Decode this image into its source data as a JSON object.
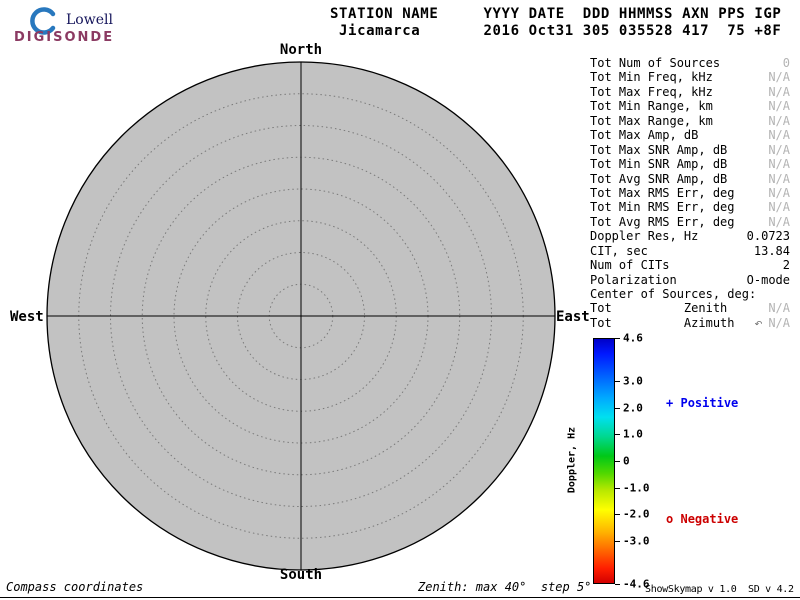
{
  "header": {
    "line1": "STATION NAME     YYYY DATE  DDD HHMMSS AXN PPS IGP",
    "line2": " Jicamarca       2016 Oct31 305 035528 417  75 +8F"
  },
  "logo": {
    "brand": "Lowell",
    "product": "DIGISONDE",
    "accent": "#2878be",
    "product_color": "#8b3a62"
  },
  "compass": {
    "north": "North",
    "south": "South",
    "west": "West",
    "east": "East"
  },
  "stats": {
    "rows": [
      {
        "label": "Tot Num of Sources",
        "value": "0",
        "muted": true
      },
      {
        "label": "Tot Min Freq, kHz",
        "value": "N/A",
        "muted": true
      },
      {
        "label": "Tot Max Freq, kHz",
        "value": "N/A",
        "muted": true
      },
      {
        "label": "Tot Min Range, km",
        "value": "N/A",
        "muted": true
      },
      {
        "label": "Tot Max Range, km",
        "value": "N/A",
        "muted": true
      },
      {
        "label": "Tot Max Amp, dB",
        "value": "N/A",
        "muted": true
      },
      {
        "label": "Tot Max SNR Amp, dB",
        "value": "N/A",
        "muted": true
      },
      {
        "label": "Tot Min SNR Amp, dB",
        "value": "N/A",
        "muted": true
      },
      {
        "label": "Tot Avg SNR Amp, dB",
        "value": "N/A",
        "muted": true
      },
      {
        "label": "Tot Max RMS Err, deg",
        "value": "N/A",
        "muted": true
      },
      {
        "label": "Tot Min RMS Err, deg",
        "value": "N/A",
        "muted": true
      },
      {
        "label": "Tot Avg RMS Err, deg",
        "value": "N/A",
        "muted": true
      },
      {
        "label": "Doppler Res, Hz",
        "value": "0.0723",
        "muted": false
      },
      {
        "label": "CIT, sec",
        "value": "13.84",
        "muted": false
      },
      {
        "label": "Num of CITs",
        "value": "2",
        "muted": false
      },
      {
        "label": "Polarization",
        "value": "O-mode",
        "muted": false
      },
      {
        "label": "Center of Sources, deg:",
        "value": "",
        "muted": false
      },
      {
        "label": "Tot          Zenith",
        "value": "N/A",
        "muted": true
      },
      {
        "label": "Tot          Azimuth",
        "value": "N/A",
        "muted": true,
        "mark": "↶"
      }
    ]
  },
  "colorbar": {
    "title": "Doppler, Hz",
    "max": 4.6,
    "min": -4.6,
    "ticks": [
      {
        "value": 4.6,
        "label": "4.6"
      },
      {
        "value": 3.0,
        "label": "3.0"
      },
      {
        "value": 2.0,
        "label": "2.0"
      },
      {
        "value": 1.0,
        "label": "1.0"
      },
      {
        "value": 0,
        "label": "0"
      },
      {
        "value": -1.0,
        "label": "-1.0"
      },
      {
        "value": -2.0,
        "label": "-2.0"
      },
      {
        "value": -3.0,
        "label": "-3.0"
      },
      {
        "value": -4.6,
        "label": "-4.6"
      }
    ]
  },
  "legend": {
    "positive": {
      "marker": "+",
      "label": "Positive",
      "color": "#0000ee"
    },
    "negative": {
      "marker": "o",
      "label": "Negative",
      "color": "#cc0000"
    }
  },
  "footer": {
    "left": "Compass coordinates",
    "center": "Zenith: max 40°  step 5°",
    "right": "ShowSkymap v 1.0  SD v 4.2"
  },
  "chart_data": {
    "type": "polar-skymap",
    "title": "Digisonde skymap, compass coordinates",
    "zenith_max_deg": 40,
    "zenith_step_deg": 5,
    "rings_deg": [
      5,
      10,
      15,
      20,
      25,
      30,
      35,
      40
    ],
    "compass_labels": [
      "North",
      "East",
      "South",
      "West"
    ],
    "num_sources": 0,
    "sources": [],
    "colorbar": {
      "label": "Doppler, Hz",
      "min": -4.6,
      "max": 4.6,
      "ticks": [
        4.6,
        3.0,
        2.0,
        1.0,
        0,
        -1.0,
        -2.0,
        -3.0,
        -4.6
      ]
    },
    "positive_marker_color": "#0000ee",
    "negative_marker_color": "#cc0000",
    "plot_fill": "#c2c2c2"
  }
}
